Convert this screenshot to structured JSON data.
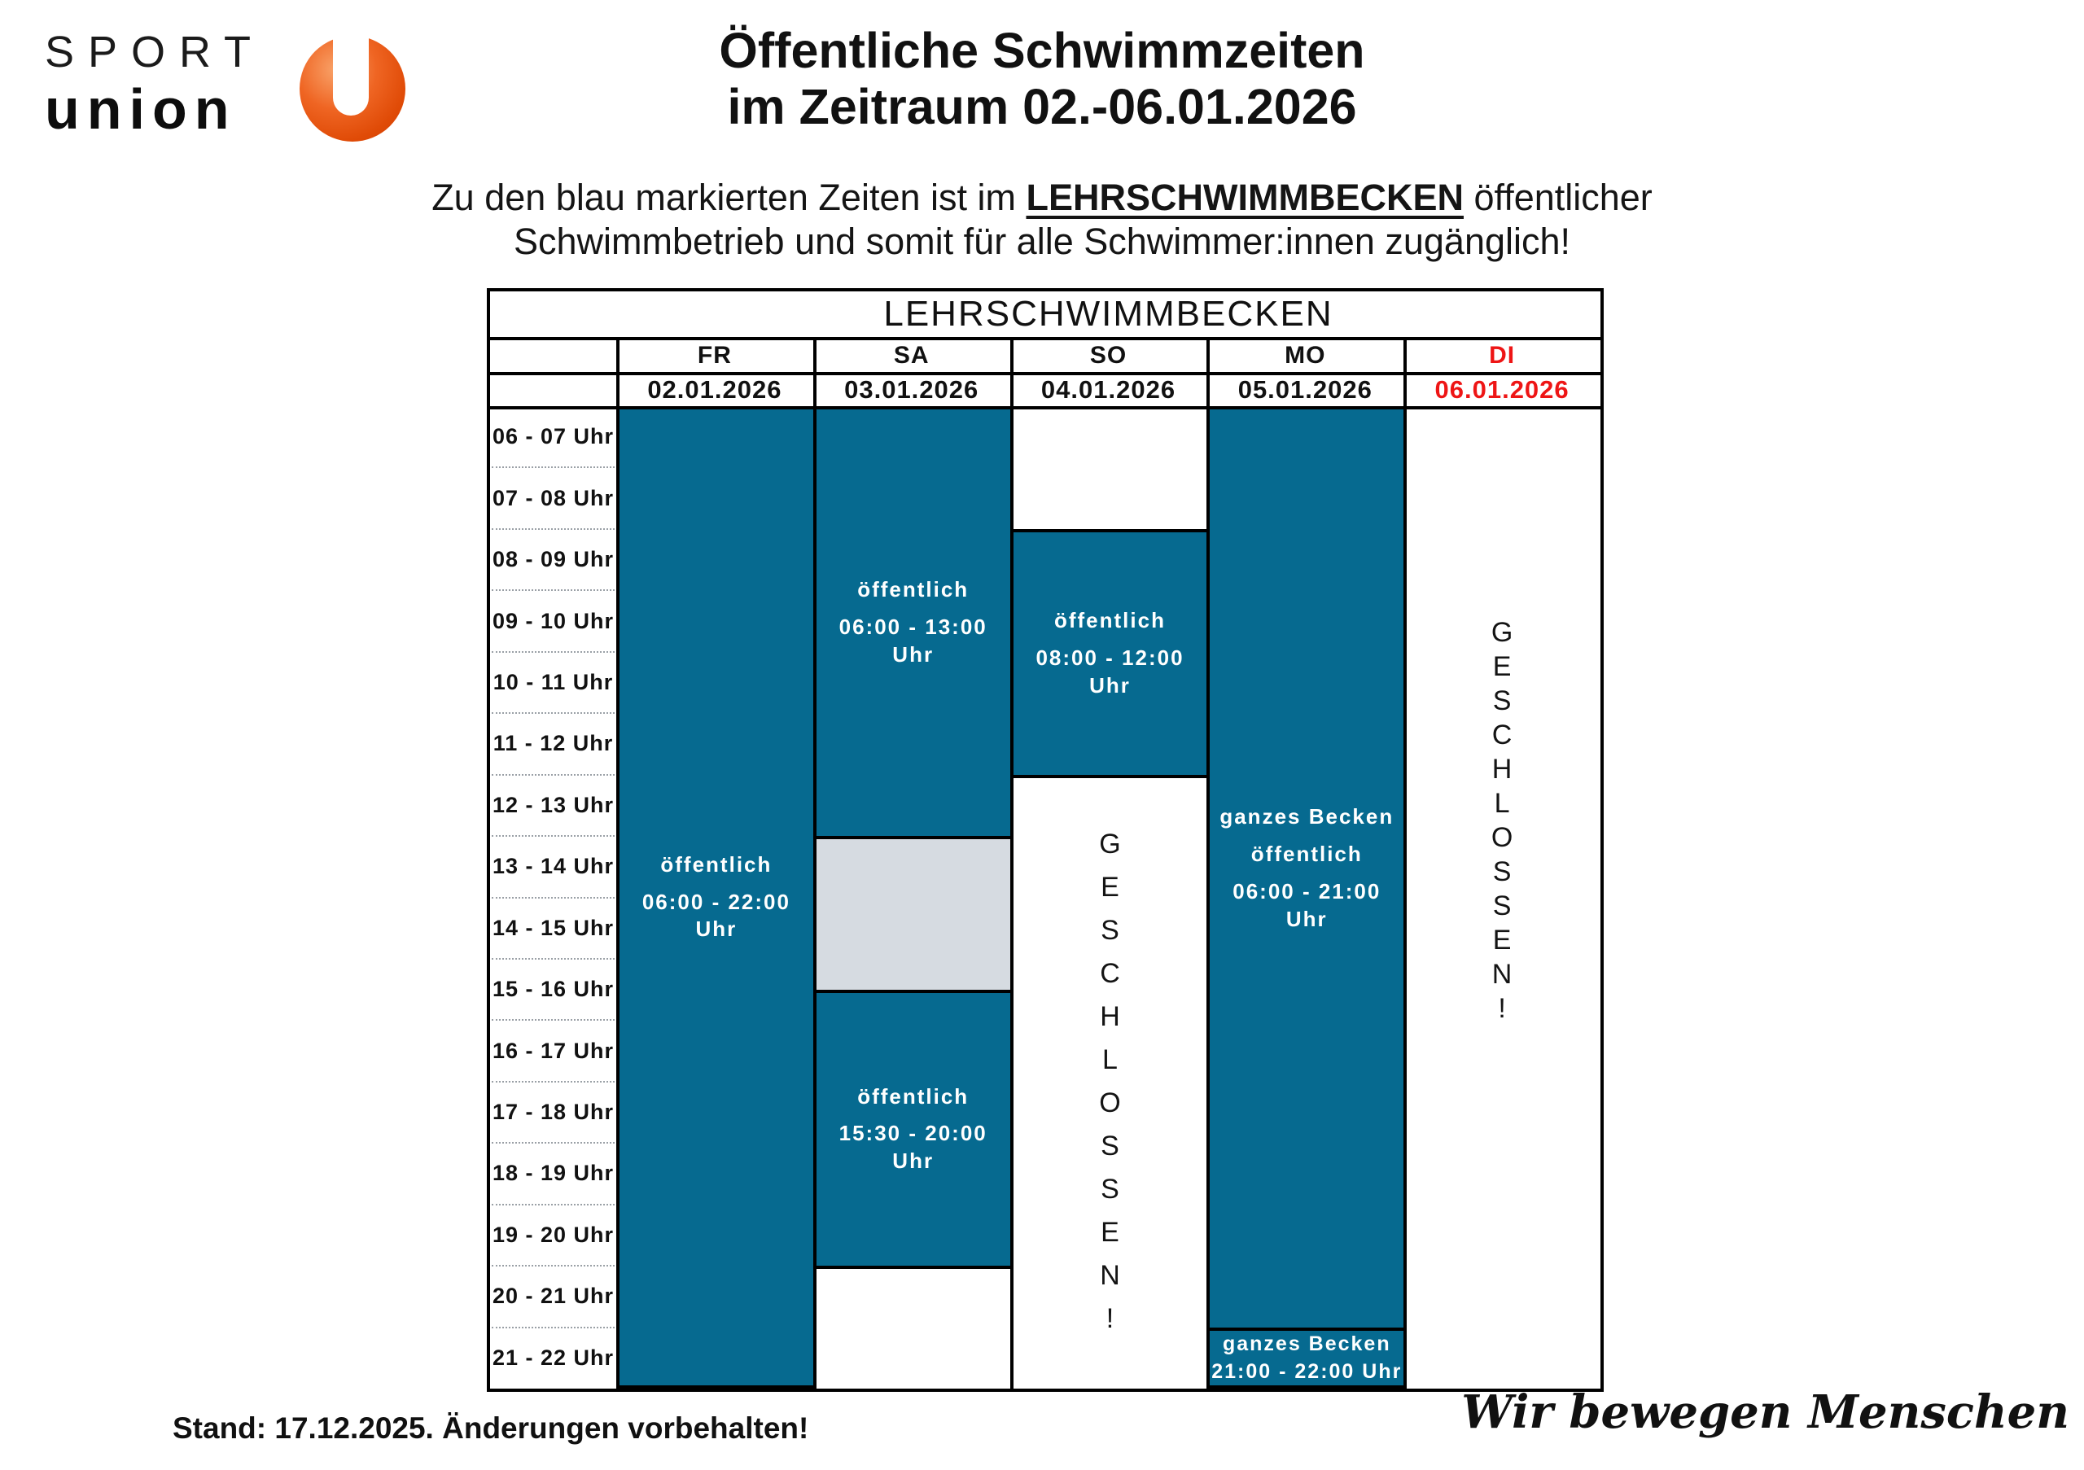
{
  "logo": {
    "sport": "SPORT",
    "union": "union"
  },
  "title": {
    "line1": "Öffentliche Schwimmzeiten",
    "line2": "im Zeitraum 02.-06.01.2026"
  },
  "subtitle": {
    "prefix": "Zu den blau markierten Zeiten ist im ",
    "emphasis": "LEHRSCHWIMMBECKEN",
    "suffix": " öffentlicher",
    "line2": "Schwimmbetrieb und somit für alle Schwimmer:innen zugänglich!"
  },
  "table": {
    "title": "LEHRSCHWIMMBECKEN",
    "days": [
      {
        "label": "FR",
        "date": "02.01.2026",
        "highlight": false
      },
      {
        "label": "SA",
        "date": "03.01.2026",
        "highlight": false
      },
      {
        "label": "SO",
        "date": "04.01.2026",
        "highlight": false
      },
      {
        "label": "MO",
        "date": "05.01.2026",
        "highlight": false
      },
      {
        "label": "DI",
        "date": "06.01.2026",
        "highlight": true
      }
    ],
    "time_rows": [
      "06 - 07 Uhr",
      "07 - 08 Uhr",
      "08 - 09 Uhr",
      "09 - 10 Uhr",
      "10 - 11 Uhr",
      "11 - 12 Uhr",
      "12 - 13 Uhr",
      "13 - 14 Uhr",
      "14 - 15 Uhr",
      "15 - 16 Uhr",
      "16 - 17 Uhr",
      "17 - 18 Uhr",
      "18 - 19 Uhr",
      "19 - 20 Uhr",
      "20 - 21 Uhr",
      "21 - 22 Uhr"
    ],
    "columns": [
      {
        "day": "FR",
        "blocks": [
          {
            "kind": "open",
            "start": "06:00",
            "end": "22:00",
            "lines": [
              "öffentlich",
              "06:00 - 22:00 Uhr"
            ]
          }
        ]
      },
      {
        "day": "SA",
        "blocks": [
          {
            "kind": "open",
            "start": "06:00",
            "end": "13:00",
            "lines": [
              "öffentlich",
              "06:00 - 13:00 Uhr"
            ]
          },
          {
            "kind": "reserved",
            "start": "13:00",
            "end": "15:30",
            "lines": []
          },
          {
            "kind": "open",
            "start": "15:30",
            "end": "20:00",
            "lines": [
              "öffentlich",
              "15:30 - 20:00 Uhr"
            ]
          }
        ]
      },
      {
        "day": "SO",
        "blocks": [
          {
            "kind": "open",
            "start": "08:00",
            "end": "12:00",
            "lines": [
              "öffentlich",
              "08:00 - 12:00 Uhr"
            ]
          },
          {
            "kind": "closed",
            "start": "12:00",
            "end": "22:00",
            "vertical_text": "GESCHLOSSEN!"
          }
        ]
      },
      {
        "day": "MO",
        "blocks": [
          {
            "kind": "open",
            "start": "06:00",
            "end": "21:00",
            "lines": [
              "ganzes Becken",
              "öffentlich",
              "06:00 - 21:00 Uhr"
            ]
          },
          {
            "kind": "open",
            "start": "21:00",
            "end": "22:00",
            "lines": [
              "ganzes Becken",
              "21:00 - 22:00 Uhr"
            ]
          }
        ]
      },
      {
        "day": "DI",
        "blocks": [
          {
            "kind": "closed",
            "start": "06:00",
            "end": "22:00",
            "vertical_text": "GESCHLOSSEN!"
          }
        ]
      }
    ]
  },
  "footer": {
    "stand": "Stand: 17.12.2025. Änderungen vorbehalten!",
    "slogan": "Wir bewegen Menschen"
  },
  "colors": {
    "open_blue": "#066a90",
    "blocked_gray": "#d6dbe1",
    "highlight_red": "#ee1515",
    "text_dark": "#111111"
  }
}
